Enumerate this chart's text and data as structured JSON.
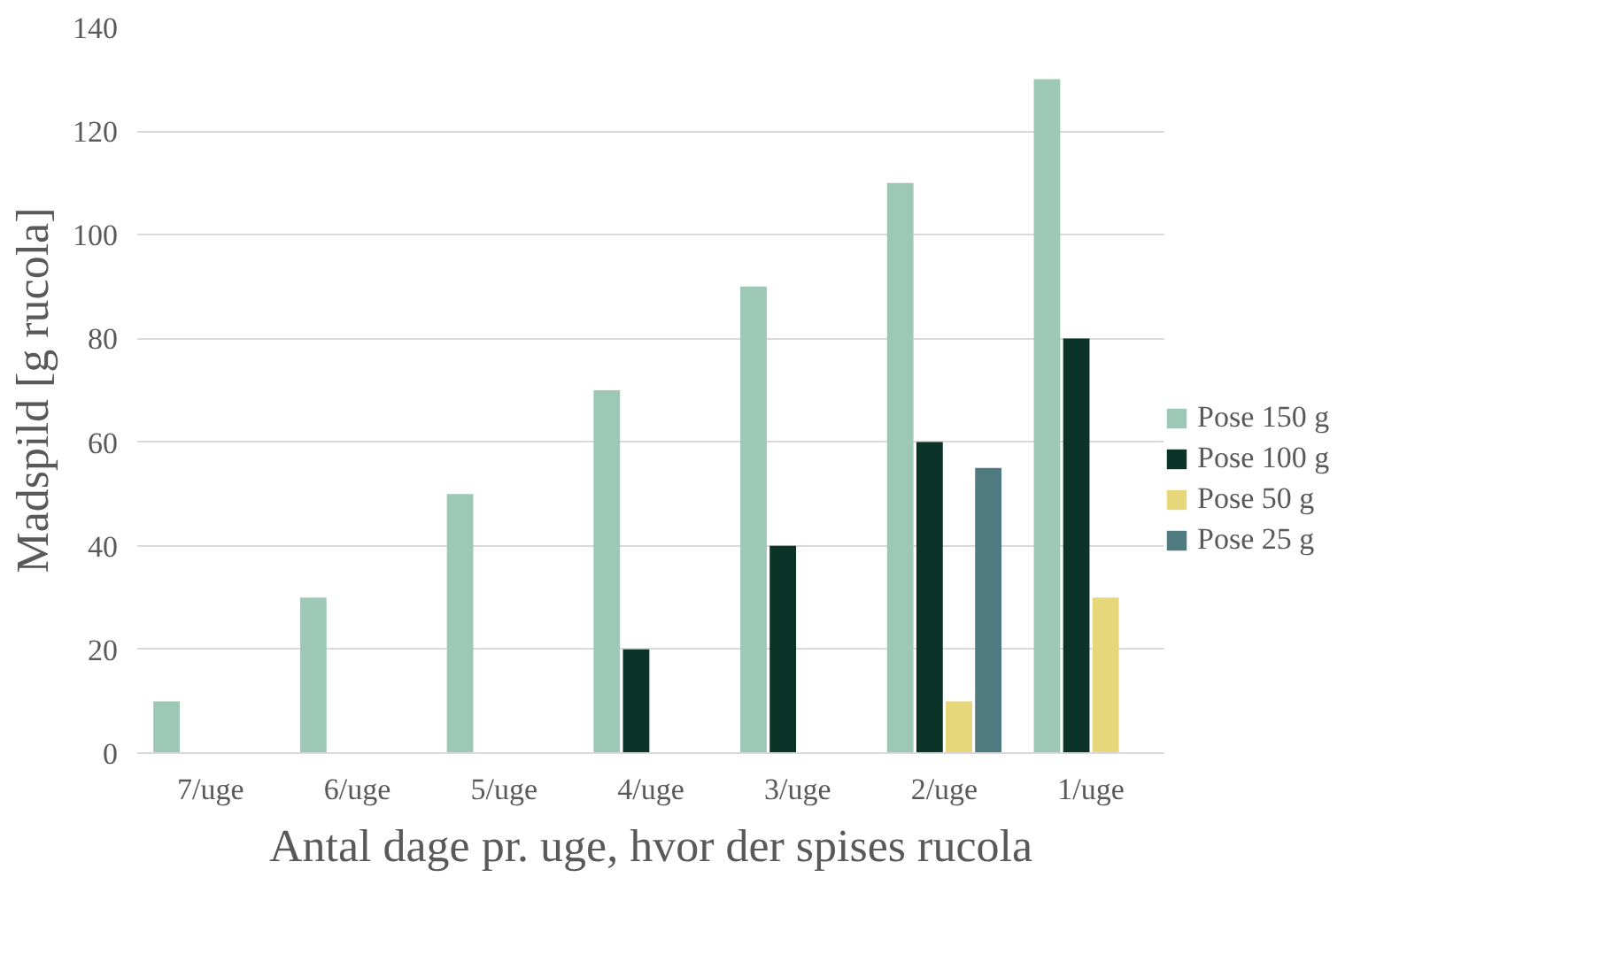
{
  "chart_data": {
    "type": "bar",
    "xlabel": "Antal dage pr. uge, hvor der spises rucola",
    "ylabel": "Madspild [g rucola]",
    "categories": [
      "7/uge",
      "6/uge",
      "5/uge",
      "4/uge",
      "3/uge",
      "2/uge",
      "1/uge"
    ],
    "series": [
      {
        "name": "Pose 150 g",
        "color": "#9dc8b5",
        "values": [
          10,
          30,
          50,
          70,
          90,
          110,
          130
        ]
      },
      {
        "name": "Pose 100 g",
        "color": "#0b3327",
        "values": [
          null,
          null,
          null,
          20,
          40,
          60,
          80
        ]
      },
      {
        "name": "Pose 50 g",
        "color": "#e6d77a",
        "values": [
          null,
          null,
          null,
          null,
          null,
          10,
          30
        ]
      },
      {
        "name": "Pose 25 g",
        "color": "#4f7a7f",
        "values": [
          null,
          null,
          null,
          null,
          null,
          55,
          null
        ]
      }
    ],
    "ylim": [
      0,
      140
    ],
    "yticks": [
      0,
      20,
      40,
      60,
      80,
      100,
      120,
      140
    ],
    "grid": "y",
    "legend": "right"
  }
}
